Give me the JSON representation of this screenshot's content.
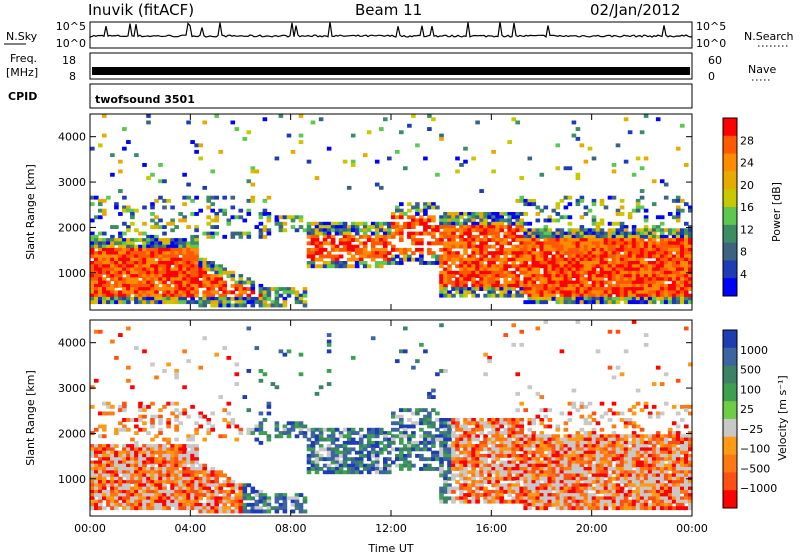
{
  "header": {
    "station": "Inuvik (fitACF)",
    "beam": "Beam 11",
    "date": "02/Jan/2012"
  },
  "status_panels": {
    "nsky_label": "N.Sky",
    "nsky_ticks": [
      "10^5",
      "10^0"
    ],
    "nsearch_label": "N.Search",
    "nsearch_ticks": [
      "10^5",
      "10^0"
    ],
    "freq_label_1": "Freq.",
    "freq_label_2": "[MHz]",
    "freq_ticks": [
      "18",
      "8"
    ],
    "nave_label": "Nave",
    "nave_ticks": [
      "60",
      "0"
    ],
    "cpid_label": "CPID",
    "cpid_value": "twofsound 3501"
  },
  "chart_data": [
    {
      "type": "heatmap",
      "ylabel": "Slant Range [km]",
      "xlabel": "",
      "x_ticks": [
        "00:00",
        "04:00",
        "08:00",
        "12:00",
        "16:00",
        "20:00",
        "00:00"
      ],
      "y_ticks": [
        1000,
        2000,
        3000,
        4000
      ],
      "ylim": [
        180,
        4500
      ],
      "colorbar_label": "Power [dB]",
      "colorbar_ticks": [
        "28",
        "24",
        "20",
        "16",
        "12",
        "8",
        "4"
      ],
      "colorbar_colors": [
        "#ff0000",
        "#ff5a00",
        "#ff8c00",
        "#e6aa00",
        "#c8c800",
        "#5cc850",
        "#3c8c64",
        "#3c6482",
        "#1e3cb4",
        "#0000ff"
      ]
    },
    {
      "type": "heatmap",
      "ylabel": "Slant Range [km]",
      "xlabel": "Time UT",
      "x_ticks": [
        "00:00",
        "04:00",
        "08:00",
        "12:00",
        "16:00",
        "20:00",
        "00:00"
      ],
      "y_ticks": [
        1000,
        2000,
        3000,
        4000
      ],
      "ylim": [
        180,
        4500
      ],
      "colorbar_label": "Velocity [m s⁻¹]",
      "colorbar_ticks": [
        "1000",
        "500",
        "100",
        "25",
        "−25",
        "−100",
        "−500",
        "−1000"
      ],
      "colorbar_colors": [
        "#1e3cb4",
        "#3c64a0",
        "#3c8264",
        "#3ca050",
        "#6ecc46",
        "#c8c8c8",
        "#ff9a14",
        "#ff7814",
        "#ff5014",
        "#ff0000"
      ]
    }
  ]
}
